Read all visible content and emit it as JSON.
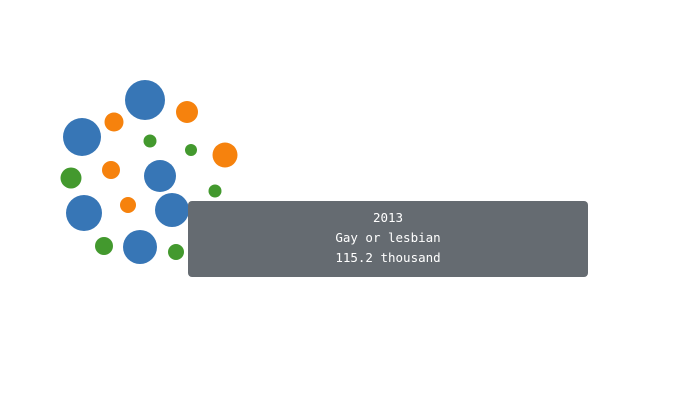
{
  "chart_data": {
    "type": "bubble",
    "series": [
      {
        "name": "",
        "color": "#3776b6"
      },
      {
        "name": "",
        "color": "#f6820d"
      },
      {
        "name": "",
        "color": "#43992e"
      }
    ],
    "tooltip": {
      "year": "2013",
      "category": "Gay or lesbian",
      "value": "115.2 thousand"
    }
  }
}
